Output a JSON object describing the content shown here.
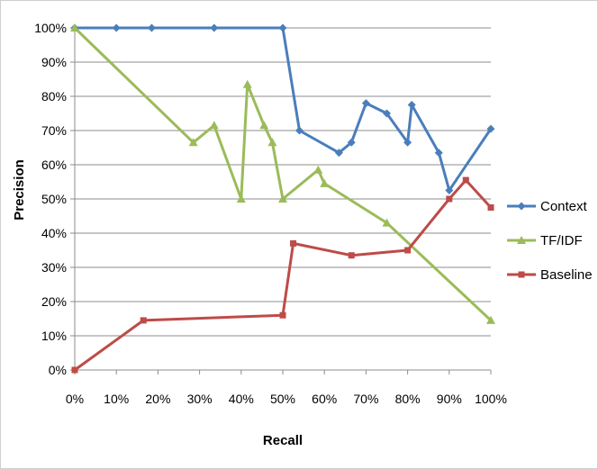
{
  "chart_data": {
    "type": "line",
    "title": "",
    "xlabel": "Recall",
    "ylabel": "Precision",
    "xlim": [
      0,
      100
    ],
    "ylim": [
      0,
      100
    ],
    "x_ticks": [
      "0%",
      "10%",
      "20%",
      "30%",
      "40%",
      "50%",
      "60%",
      "70%",
      "80%",
      "90%",
      "100%"
    ],
    "y_ticks": [
      "0%",
      "10%",
      "20%",
      "30%",
      "40%",
      "50%",
      "60%",
      "70%",
      "80%",
      "90%",
      "100%"
    ],
    "grid": "horizontal",
    "legend_position": "right",
    "series": [
      {
        "name": "Context",
        "color": "#4a7ebb",
        "marker": "diamond",
        "points": [
          [
            0,
            100
          ],
          [
            10,
            100
          ],
          [
            18.5,
            100
          ],
          [
            33.5,
            100
          ],
          [
            50,
            100
          ],
          [
            54,
            70
          ],
          [
            63.5,
            63.5
          ],
          [
            66.5,
            66.5
          ],
          [
            70,
            78
          ],
          [
            75,
            75
          ],
          [
            80,
            66.5
          ],
          [
            81,
            77.5
          ],
          [
            87.5,
            63.5
          ],
          [
            90,
            52.5
          ],
          [
            100,
            70.5
          ]
        ]
      },
      {
        "name": "TF/IDF",
        "color": "#9bbb59",
        "marker": "triangle",
        "points": [
          [
            0,
            100
          ],
          [
            28.5,
            66.5
          ],
          [
            33.5,
            71.5
          ],
          [
            40,
            50
          ],
          [
            41.5,
            83.5
          ],
          [
            45.5,
            71.5
          ],
          [
            47.5,
            66.5
          ],
          [
            50,
            50
          ],
          [
            58.5,
            58.5
          ],
          [
            60,
            54.5
          ],
          [
            75,
            43
          ],
          [
            100,
            14.5
          ]
        ]
      },
      {
        "name": "Baseline",
        "color": "#be4b48",
        "marker": "square",
        "points": [
          [
            0,
            0
          ],
          [
            16.5,
            14.5
          ],
          [
            50,
            16
          ],
          [
            52.5,
            37
          ],
          [
            66.5,
            33.5
          ],
          [
            80,
            35
          ],
          [
            90,
            50
          ],
          [
            94,
            55.5
          ],
          [
            100,
            47.5
          ]
        ]
      }
    ]
  }
}
